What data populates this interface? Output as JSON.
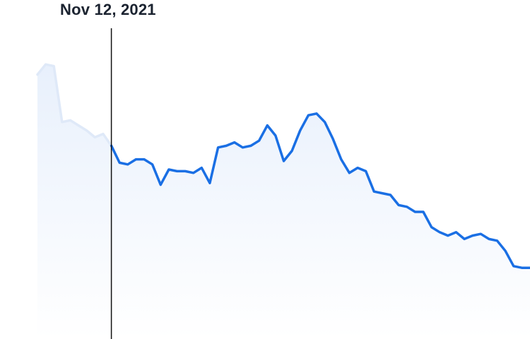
{
  "cursor": {
    "date_label": "Nov 12, 2021"
  },
  "colors": {
    "line": "#1a6fe4",
    "line_faded": "#dfe9f8",
    "area_top": "#e8f0fc",
    "area_bottom": "#ffffff",
    "cursor_line": "#111111",
    "label_text": "#1b2330"
  },
  "chart_data": {
    "type": "area",
    "title": "",
    "xlabel": "",
    "ylabel": "",
    "grid": false,
    "legend": "none",
    "x_unit": "step",
    "ylim": [
      0,
      100
    ],
    "cursor_index": 9,
    "series": [
      {
        "values": [
          78,
          81,
          80.5,
          64,
          64.5,
          63,
          61.5,
          59.5,
          60.5,
          57,
          52,
          51.5,
          53,
          53,
          51.5,
          45.5,
          50,
          49.5,
          49.5,
          49,
          50.5,
          46,
          56.5,
          57,
          58,
          56.5,
          57,
          58.5,
          63,
          60,
          52.5,
          55.5,
          61.5,
          66,
          66.5,
          64,
          59,
          53,
          49,
          50.5,
          49.5,
          43.5,
          43,
          42.5,
          39.5,
          39,
          37.5,
          37.5,
          33,
          31.5,
          30.5,
          31.5,
          29.5,
          30.5,
          31,
          29.5,
          29,
          26,
          21.5,
          21,
          21
        ]
      }
    ]
  }
}
